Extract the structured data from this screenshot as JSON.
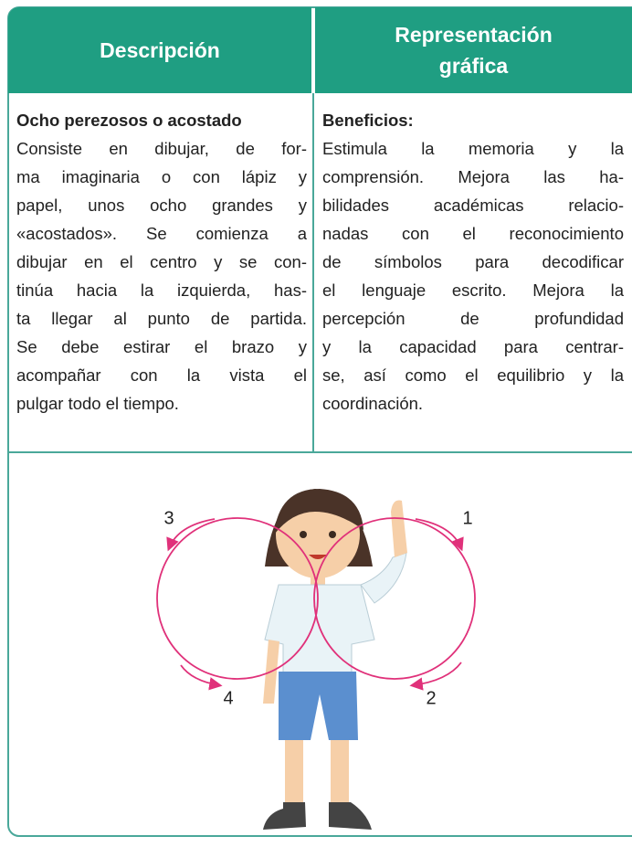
{
  "header": {
    "columns": [
      "Descripción",
      "Representación gráfica"
    ]
  },
  "table": {
    "rows": [
      [
        {
          "title": "Ocho perezosos o acostado",
          "lines": [
            "Consiste en dibujar, de for-",
            "ma imaginaria o con lápiz y",
            "papel, unos ocho grandes y",
            "«acostados». Se comienza a",
            "dibujar en el centro y se con-",
            "tinúa hacia la izquierda, has-",
            "ta llegar al punto de partida.",
            "Se debe estirar el brazo y",
            "acompañar con la vista el",
            "pulgar todo el tiempo."
          ]
        },
        {
          "title": "Beneficios:",
          "lines": [
            "Estimula la memoria y la",
            "comprensión. Mejora las ha-",
            "bilidades académicas relacio-",
            "nadas con el reconocimiento",
            "de símbolos para decodificar",
            "el lenguaje escrito. Mejora la",
            "percepción de profundidad",
            "y la capacidad para centrar-",
            "se, así como el equilibrio y la",
            "coordinación."
          ]
        }
      ]
    ]
  },
  "illustration": {
    "labels": [
      "1",
      "2",
      "3",
      "4"
    ]
  }
}
